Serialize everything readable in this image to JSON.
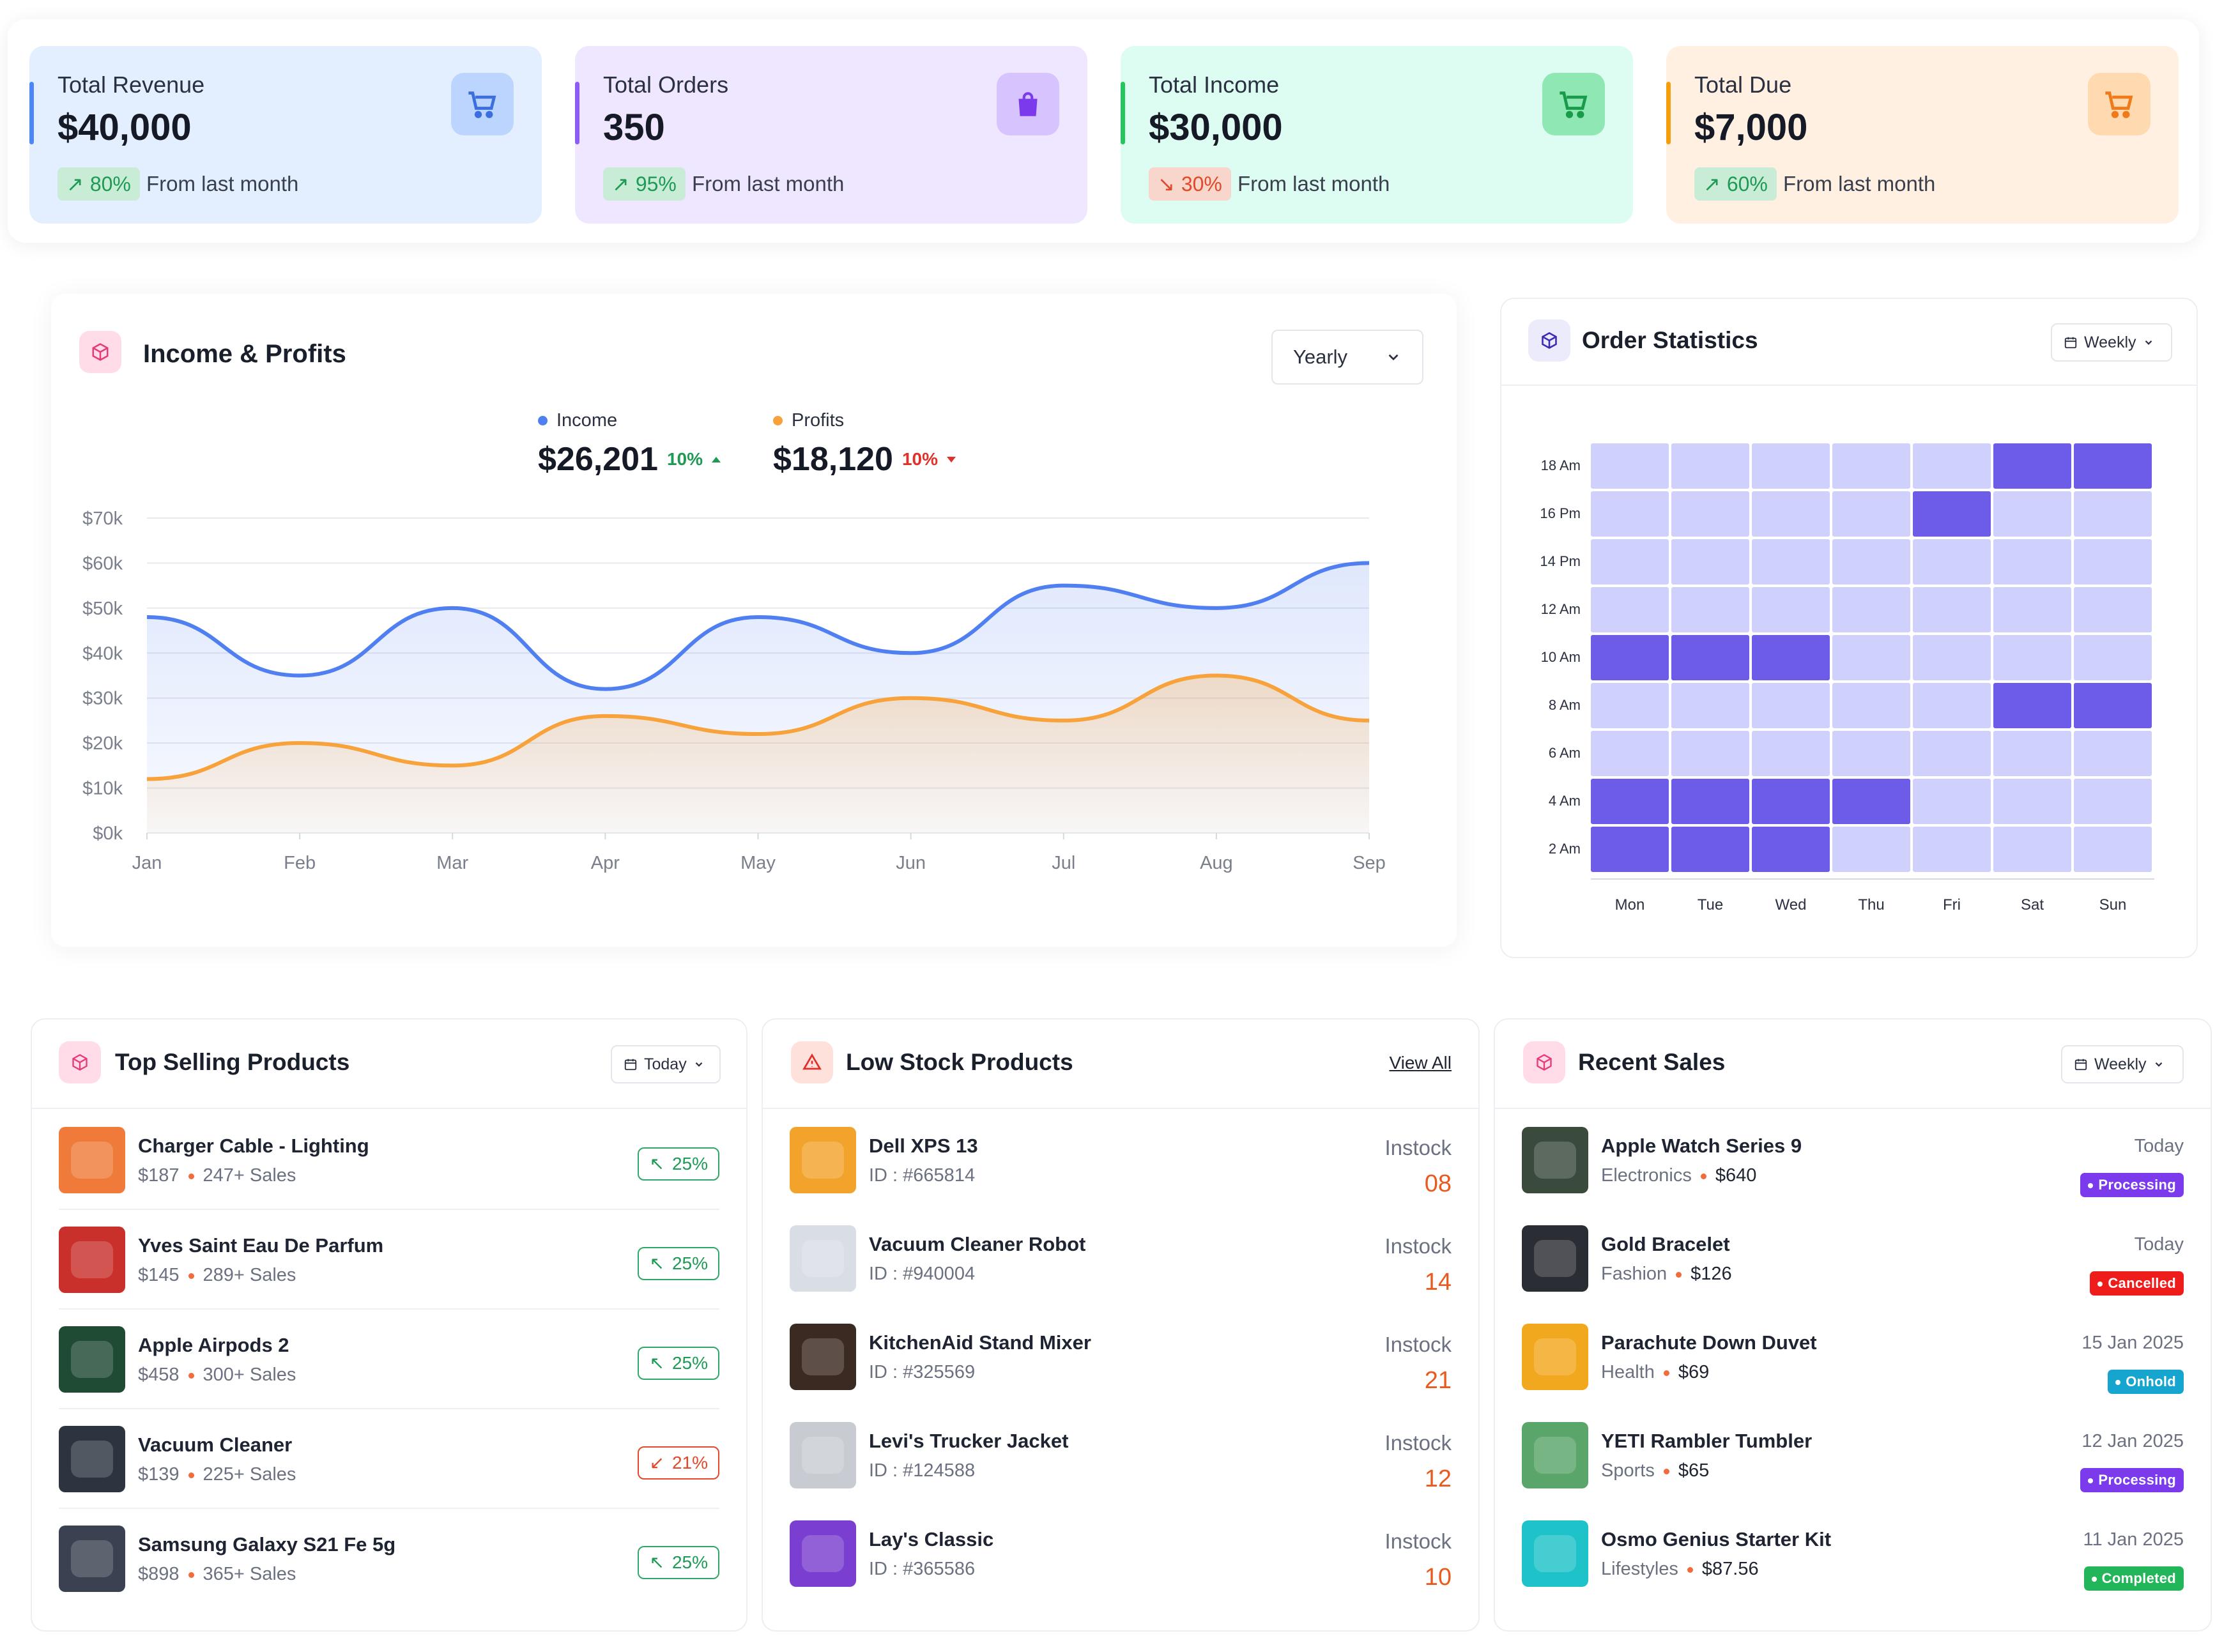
{
  "stats": [
    {
      "label": "Total Revenue",
      "value": "$40,000",
      "change": "80%",
      "direction": "up",
      "note": "From last month",
      "bg": "#e3efff",
      "accent": "#4f86f7",
      "icon": "shopping-cart-icon",
      "icon_bg": "#bcd5ff"
    },
    {
      "label": "Total Orders",
      "value": "350",
      "change": "95%",
      "direction": "up",
      "note": "From last month",
      "bg": "#efe7ff",
      "accent": "#8b5cf6",
      "icon": "shopping-bag-icon",
      "icon_bg": "#d7c4ff"
    },
    {
      "label": "Total Income",
      "value": "$30,000",
      "change": "30%",
      "direction": "down",
      "note": "From last month",
      "bg": "#ddfcf2",
      "accent": "#22c55e",
      "icon": "shopping-cart-icon",
      "icon_bg": "#8fe7b4"
    },
    {
      "label": "Total Due",
      "value": "$7,000",
      "change": "60%",
      "direction": "up",
      "note": "From last month",
      "bg": "#fff0e2",
      "accent": "#f59e0b",
      "icon": "shopping-cart-icon",
      "icon_bg": "#ffd9b0"
    }
  ],
  "income_profits": {
    "title": "Income & Profits",
    "period": "Yearly",
    "legend": [
      {
        "name": "Income",
        "value": "$26,201",
        "change": "10%",
        "direction": "up",
        "color": "#4f7ff0"
      },
      {
        "name": "Profits",
        "value": "$18,120",
        "change": "10%",
        "direction": "down",
        "color": "#f7a23b"
      }
    ]
  },
  "chart_data": {
    "type": "area",
    "categories": [
      "Jan",
      "Feb",
      "Mar",
      "Apr",
      "May",
      "Jun",
      "Jul",
      "Aug",
      "Sep"
    ],
    "y_tick_labels": [
      "$0k",
      "$10k",
      "$20k",
      "$30k",
      "$40k",
      "$50k",
      "$60k",
      "$70k"
    ],
    "ylim": [
      0,
      70000
    ],
    "series": [
      {
        "name": "Income",
        "color": "#4f7ff0",
        "values": [
          48000,
          35000,
          50000,
          32000,
          48000,
          40000,
          55000,
          50000,
          60000
        ]
      },
      {
        "name": "Profits",
        "color": "#f7a23b",
        "values": [
          12000,
          20000,
          15000,
          26000,
          22000,
          30000,
          25000,
          35000,
          25000
        ]
      }
    ],
    "grid": true
  },
  "order_stats": {
    "title": "Order Statistics",
    "period": "Weekly",
    "days": [
      "Mon",
      "Tue",
      "Wed",
      "Thu",
      "Fri",
      "Sat",
      "Sun"
    ],
    "times": [
      "18 Am",
      "16 Pm",
      "14 Pm",
      "12 Am",
      "10 Am",
      "8 Am",
      "6 Am",
      "4 Am",
      "2 Am"
    ],
    "highlight": [
      [
        0,
        0,
        0,
        0,
        0,
        1,
        1
      ],
      [
        0,
        0,
        0,
        0,
        1,
        0,
        0
      ],
      [
        0,
        0,
        0,
        0,
        0,
        0,
        0
      ],
      [
        0,
        0,
        0,
        0,
        0,
        0,
        0
      ],
      [
        1,
        1,
        1,
        0,
        0,
        0,
        0
      ],
      [
        0,
        0,
        0,
        0,
        0,
        1,
        1
      ],
      [
        0,
        0,
        0,
        0,
        0,
        0,
        0
      ],
      [
        1,
        1,
        1,
        1,
        0,
        0,
        0
      ],
      [
        1,
        1,
        1,
        0,
        0,
        0,
        0
      ]
    ],
    "colors": {
      "low": "#cfd0fb",
      "high": "#6c5ce7"
    }
  },
  "top_selling": {
    "title": "Top Selling Products",
    "period": "Today",
    "items": [
      {
        "name": "Charger Cable - Lighting",
        "price": "$187",
        "sales": "247+ Sales",
        "trend": "25%",
        "direction": "up",
        "thumb": "#f07a3a"
      },
      {
        "name": "Yves Saint Eau De Parfum",
        "price": "$145",
        "sales": "289+ Sales",
        "trend": "25%",
        "direction": "up",
        "thumb": "#c9302c"
      },
      {
        "name": "Apple Airpods 2",
        "price": "$458",
        "sales": "300+ Sales",
        "trend": "25%",
        "direction": "up",
        "thumb": "#1f4a34"
      },
      {
        "name": "Vacuum Cleaner",
        "price": "$139",
        "sales": "225+ Sales",
        "trend": "21%",
        "direction": "down",
        "thumb": "#2d3440"
      },
      {
        "name": "Samsung Galaxy S21 Fe 5g",
        "price": "$898",
        "sales": "365+ Sales",
        "trend": "25%",
        "direction": "up",
        "thumb": "#3a4150"
      }
    ]
  },
  "low_stock": {
    "title": "Low Stock Products",
    "view_all": "View All",
    "items": [
      {
        "name": "Dell XPS 13",
        "id": "ID : #665814",
        "status": "Instock",
        "qty": "08",
        "thumb": "#f3a32b"
      },
      {
        "name": "Vacuum Cleaner Robot",
        "id": "ID : #940004",
        "status": "Instock",
        "qty": "14",
        "thumb": "#d9dde4"
      },
      {
        "name": "KitchenAid Stand Mixer",
        "id": "ID : #325569",
        "status": "Instock",
        "qty": "21",
        "thumb": "#3b2a22"
      },
      {
        "name": "Levi's Trucker Jacket",
        "id": "ID : #124588",
        "status": "Instock",
        "qty": "12",
        "thumb": "#c8ccd2"
      },
      {
        "name": "Lay's Classic",
        "id": "ID : #365586",
        "status": "Instock",
        "qty": "10",
        "thumb": "#7a3fd0"
      }
    ]
  },
  "recent_sales": {
    "title": "Recent Sales",
    "period": "Weekly",
    "items": [
      {
        "name": "Apple Watch Series 9",
        "category": "Electronics",
        "price": "$640",
        "date": "Today",
        "status": "Processing",
        "status_color": "#7c3aed",
        "thumb": "#3a4a3c"
      },
      {
        "name": "Gold Bracelet",
        "category": "Fashion",
        "price": "$126",
        "date": "Today",
        "status": "Cancelled",
        "status_color": "#ef1c1c",
        "thumb": "#2a2d33"
      },
      {
        "name": "Parachute Down Duvet",
        "category": "Health",
        "price": "$69",
        "date": "15 Jan 2025",
        "status": "Onhold",
        "status_color": "#16a5cf",
        "thumb": "#f2a81e"
      },
      {
        "name": "YETI Rambler Tumbler",
        "category": "Sports",
        "price": "$65",
        "date": "12 Jan 2025",
        "status": "Processing",
        "status_color": "#7c3aed",
        "thumb": "#5aa66a"
      },
      {
        "name": "Osmo Genius Starter Kit",
        "category": "Lifestyles",
        "price": "$87.56",
        "date": "11 Jan 2025",
        "status": "Completed",
        "status_color": "#22b55a",
        "thumb": "#1ec3c9"
      }
    ]
  }
}
